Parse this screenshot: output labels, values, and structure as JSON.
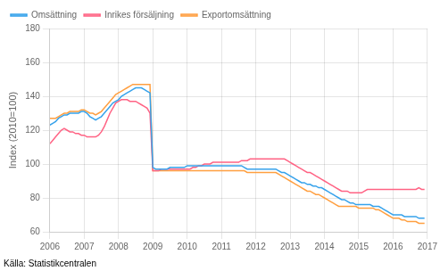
{
  "chart_data": {
    "type": "line",
    "ylabel": "Index (2010=100)",
    "annotations": [
      "Källa: Statistikcentralen"
    ],
    "x": [
      2006.0,
      2006.083,
      2006.167,
      2006.25,
      2006.333,
      2006.417,
      2006.5,
      2006.583,
      2006.667,
      2006.75,
      2006.833,
      2006.917,
      2007.0,
      2007.083,
      2007.167,
      2007.25,
      2007.333,
      2007.417,
      2007.5,
      2007.583,
      2007.667,
      2007.75,
      2007.833,
      2007.917,
      2008.0,
      2008.083,
      2008.167,
      2008.25,
      2008.333,
      2008.417,
      2008.5,
      2008.583,
      2008.667,
      2008.75,
      2008.833,
      2008.917,
      2009.0,
      2009.083,
      2009.167,
      2009.25,
      2009.333,
      2009.417,
      2009.5,
      2009.583,
      2009.667,
      2009.75,
      2009.833,
      2009.917,
      2010.0,
      2010.083,
      2010.167,
      2010.25,
      2010.333,
      2010.417,
      2010.5,
      2010.583,
      2010.667,
      2010.75,
      2010.833,
      2010.917,
      2011.0,
      2011.083,
      2011.167,
      2011.25,
      2011.333,
      2011.417,
      2011.5,
      2011.583,
      2011.667,
      2011.75,
      2011.833,
      2011.917,
      2012.0,
      2012.083,
      2012.167,
      2012.25,
      2012.333,
      2012.417,
      2012.5,
      2012.583,
      2012.667,
      2012.75,
      2012.833,
      2012.917,
      2013.0,
      2013.083,
      2013.167,
      2013.25,
      2013.333,
      2013.417,
      2013.5,
      2013.583,
      2013.667,
      2013.75,
      2013.833,
      2013.917,
      2014.0,
      2014.083,
      2014.167,
      2014.25,
      2014.333,
      2014.417,
      2014.5,
      2014.583,
      2014.667,
      2014.75,
      2014.833,
      2014.917,
      2015.0,
      2015.083,
      2015.167,
      2015.25,
      2015.333,
      2015.417,
      2015.5,
      2015.583,
      2015.667,
      2015.75,
      2015.833,
      2015.917,
      2016.0,
      2016.083,
      2016.167,
      2016.25,
      2016.333,
      2016.417,
      2016.5,
      2016.583,
      2016.667,
      2016.75,
      2016.833,
      2016.917
    ],
    "series": [
      {
        "name": "Omsättning",
        "values": [
          123,
          124,
          125,
          127,
          128,
          129,
          129,
          130,
          130,
          130,
          130,
          131,
          131,
          130,
          128,
          127,
          126,
          127,
          128,
          130,
          132,
          134,
          136,
          137,
          138,
          140,
          141,
          142,
          143,
          144,
          145,
          145,
          145,
          144,
          143,
          142,
          98,
          97,
          97,
          97,
          97,
          97,
          98,
          98,
          98,
          98,
          98,
          98,
          99,
          99,
          99,
          99,
          99,
          99,
          99,
          99,
          99,
          99,
          99,
          99,
          99,
          99,
          99,
          99,
          99,
          99,
          99,
          99,
          98,
          97,
          97,
          97,
          97,
          97,
          97,
          97,
          97,
          97,
          97,
          97,
          96,
          95,
          95,
          94,
          93,
          92,
          91,
          90,
          89,
          89,
          88,
          88,
          87,
          87,
          86,
          86,
          85,
          84,
          83,
          82,
          81,
          80,
          79,
          79,
          78,
          77,
          77,
          76,
          76,
          76,
          76,
          76,
          76,
          75,
          75,
          75,
          74,
          73,
          72,
          71,
          70,
          70,
          70,
          70,
          69,
          69,
          69,
          69,
          69,
          68,
          68,
          68
        ]
      },
      {
        "name": "Inrikes försäljning",
        "values": [
          112,
          114,
          116,
          118,
          120,
          121,
          120,
          119,
          119,
          118,
          118,
          117,
          117,
          116,
          116,
          116,
          116,
          117,
          119,
          122,
          126,
          130,
          133,
          136,
          137,
          138,
          138,
          138,
          137,
          137,
          137,
          136,
          135,
          134,
          133,
          130,
          96,
          96,
          96,
          97,
          97,
          97,
          97,
          97,
          97,
          97,
          97,
          97,
          97,
          97,
          98,
          98,
          99,
          99,
          100,
          100,
          100,
          101,
          101,
          101,
          101,
          101,
          101,
          101,
          101,
          101,
          101,
          102,
          102,
          102,
          103,
          103,
          103,
          103,
          103,
          103,
          103,
          103,
          103,
          103,
          103,
          103,
          103,
          102,
          101,
          100,
          99,
          98,
          97,
          96,
          95,
          95,
          94,
          93,
          92,
          91,
          90,
          89,
          88,
          87,
          86,
          85,
          84,
          84,
          84,
          83,
          83,
          83,
          83,
          83,
          84,
          85,
          85,
          85,
          85,
          85,
          85,
          85,
          85,
          85,
          85,
          85,
          85,
          85,
          85,
          85,
          85,
          85,
          85,
          86,
          85,
          85
        ]
      },
      {
        "name": "Exportomsättning",
        "values": [
          127,
          127,
          127,
          128,
          129,
          130,
          130,
          131,
          131,
          131,
          131,
          132,
          132,
          131,
          130,
          130,
          129,
          130,
          131,
          133,
          135,
          137,
          139,
          141,
          142,
          143,
          144,
          145,
          146,
          147,
          147,
          147,
          147,
          147,
          147,
          147,
          96,
          96,
          96,
          96,
          96,
          96,
          96,
          96,
          96,
          96,
          96,
          96,
          96,
          96,
          96,
          96,
          96,
          96,
          96,
          96,
          96,
          96,
          96,
          96,
          96,
          96,
          96,
          96,
          96,
          96,
          96,
          96,
          96,
          95,
          95,
          95,
          95,
          95,
          95,
          95,
          95,
          95,
          95,
          95,
          94,
          93,
          92,
          91,
          90,
          89,
          88,
          87,
          86,
          85,
          84,
          84,
          83,
          82,
          82,
          81,
          80,
          79,
          78,
          77,
          76,
          75,
          75,
          75,
          75,
          75,
          75,
          75,
          74,
          74,
          74,
          74,
          74,
          74,
          73,
          73,
          72,
          71,
          70,
          69,
          68,
          68,
          68,
          67,
          67,
          66,
          66,
          66,
          66,
          65,
          65,
          65
        ]
      }
    ],
    "xlim": [
      2006.0,
      2017.0
    ],
    "xticks": [
      2006,
      2007,
      2008,
      2009,
      2010,
      2011,
      2012,
      2013,
      2014,
      2015,
      2016,
      2017
    ],
    "ylim": [
      60,
      180
    ],
    "yticks": [
      60,
      80,
      100,
      120,
      140,
      160,
      180
    ],
    "grid": true,
    "legend": "upper left"
  }
}
